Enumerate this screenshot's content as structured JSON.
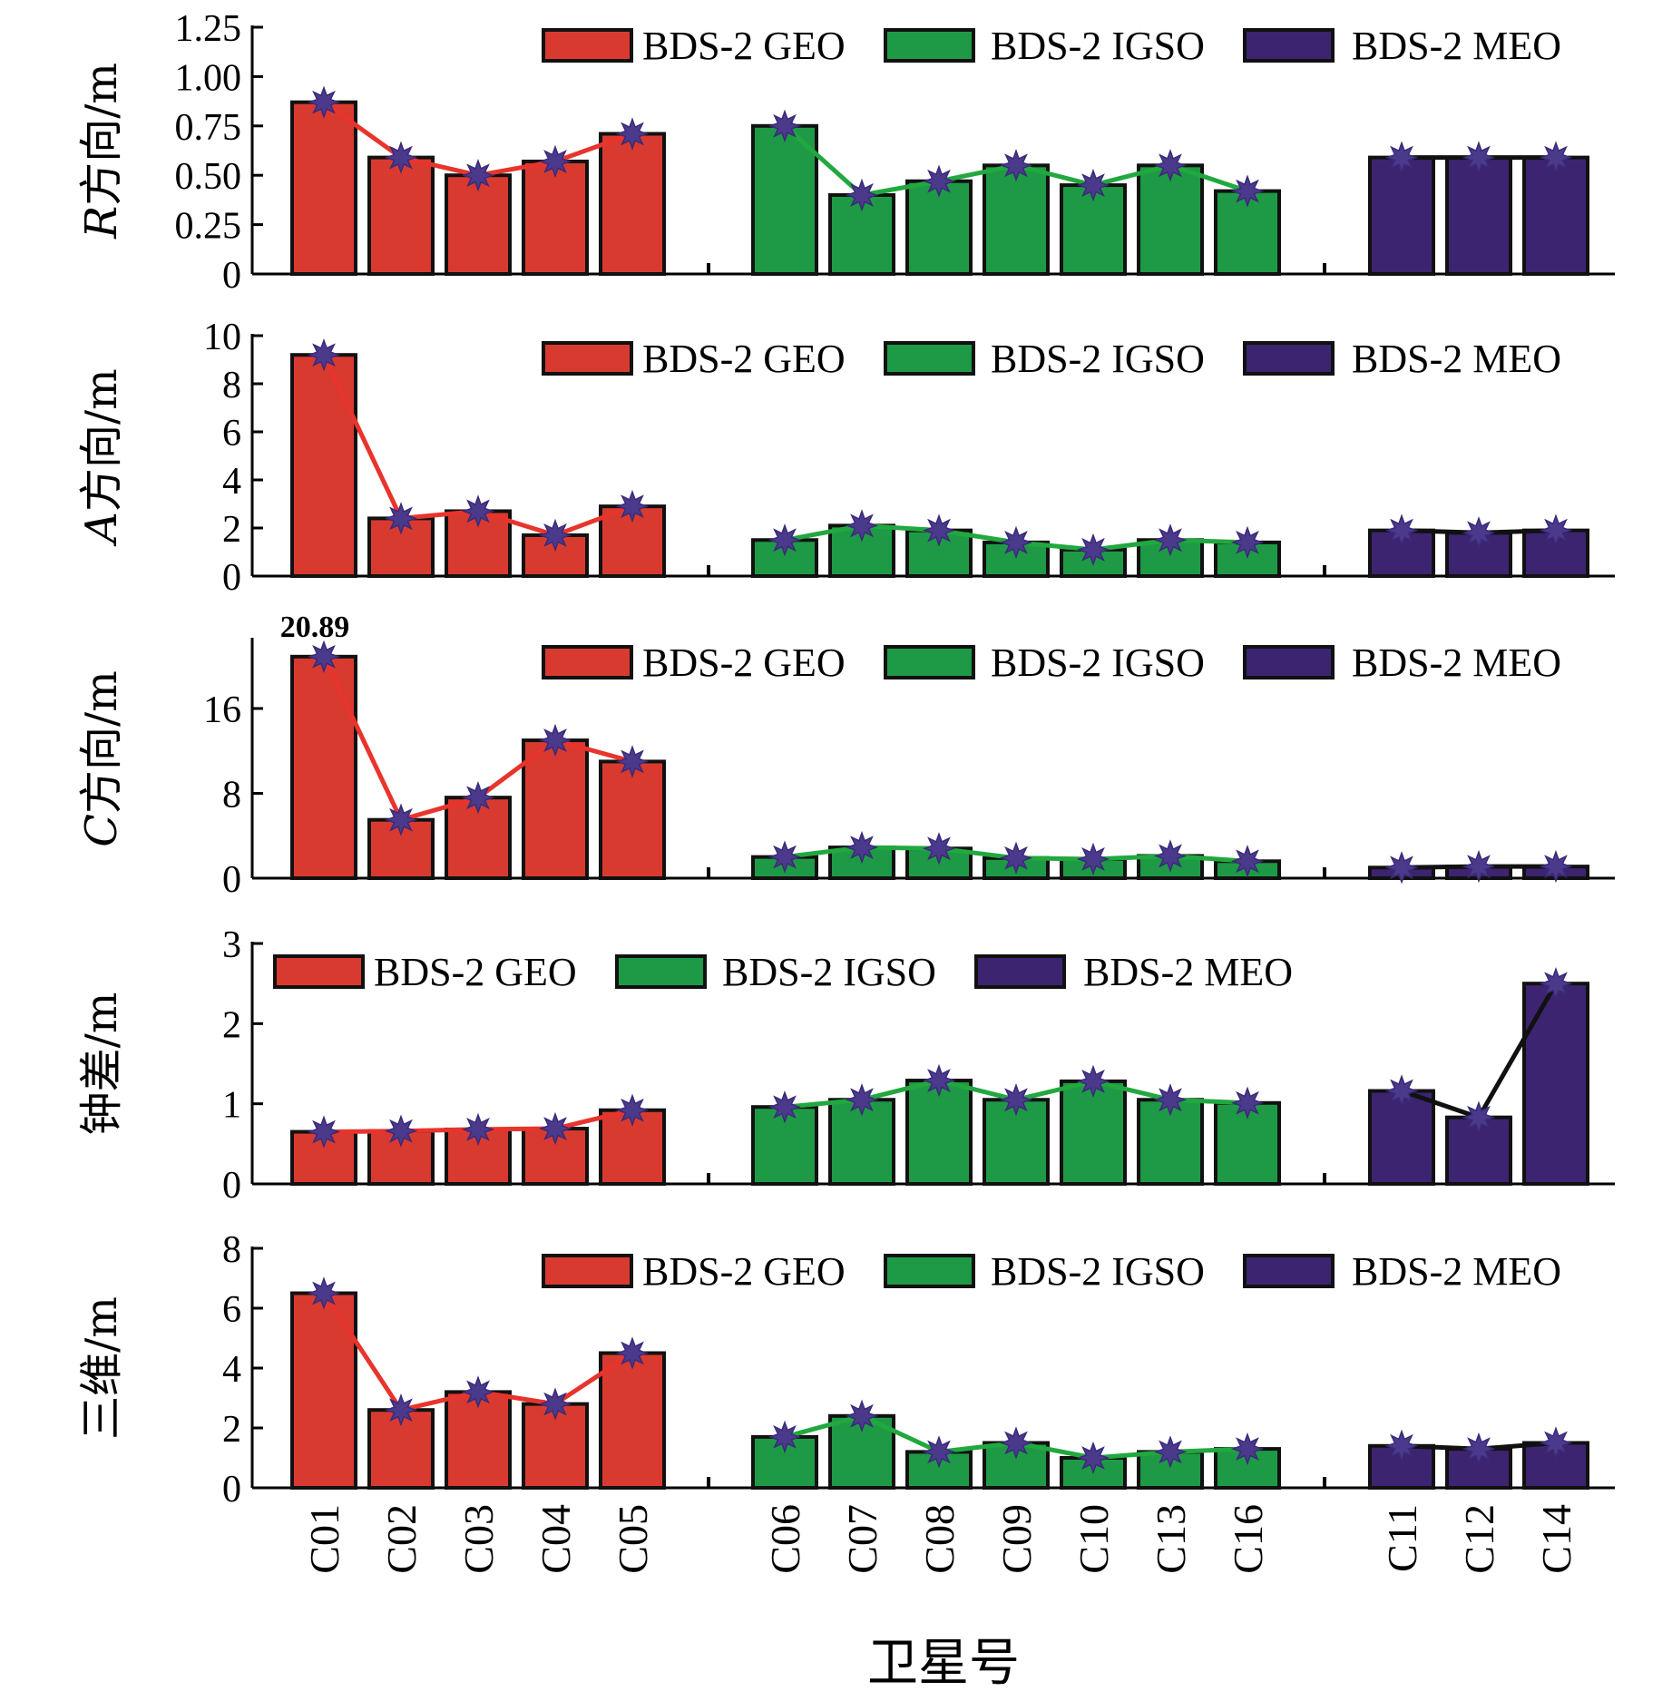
{
  "chart_data": {
    "type": "bar",
    "xlabel": "卫星号",
    "categories": [
      "C01",
      "C02",
      "C03",
      "C04",
      "C05",
      "C06",
      "C07",
      "C08",
      "C09",
      "C10",
      "C13",
      "C16",
      "C11",
      "C12",
      "C14"
    ],
    "groups": [
      {
        "name": "BDS-2 GEO",
        "color": "#d93a30",
        "line_color": "#e8342c",
        "categories": [
          "C01",
          "C02",
          "C03",
          "C04",
          "C05"
        ]
      },
      {
        "name": "BDS-2 IGSO",
        "color": "#1e9a46",
        "line_color": "#21a83f",
        "categories": [
          "C06",
          "C07",
          "C08",
          "C09",
          "C10",
          "C13",
          "C16"
        ]
      },
      {
        "name": "BDS-2 MEO",
        "color": "#3d2470",
        "line_color": "#111111",
        "categories": [
          "C11",
          "C12",
          "C14"
        ]
      }
    ],
    "marker_color": "#4b3a8c",
    "panels": [
      {
        "id": "r",
        "ylabel_italic": "R",
        "ylabel_rest": "方向/m",
        "ylim": [
          0,
          1.25
        ],
        "yticks": [
          0,
          0.25,
          0.5,
          0.75,
          1.0,
          1.25
        ],
        "ytick_labels": [
          "0",
          "0.25",
          "0.50",
          "0.75",
          "1.00",
          "1.25"
        ],
        "legend_position": "top-right",
        "values": [
          0.87,
          0.59,
          0.5,
          0.57,
          0.71,
          0.75,
          0.4,
          0.47,
          0.55,
          0.45,
          0.55,
          0.42,
          0.59,
          0.59,
          0.59
        ]
      },
      {
        "id": "a",
        "ylabel_italic": "A",
        "ylabel_rest": "方向/m",
        "ylim": [
          0,
          10
        ],
        "yticks": [
          0,
          2,
          4,
          6,
          8,
          10
        ],
        "ytick_labels": [
          "0",
          "2",
          "4",
          "6",
          "8",
          "10"
        ],
        "legend_position": "top-right",
        "values": [
          9.2,
          2.4,
          2.7,
          1.7,
          2.9,
          1.5,
          2.1,
          1.9,
          1.4,
          1.1,
          1.5,
          1.4,
          1.9,
          1.8,
          1.9
        ]
      },
      {
        "id": "c",
        "ylabel_italic": "C",
        "ylabel_rest": "方向/m",
        "ylim": [
          0,
          22.5
        ],
        "yticks": [
          0,
          8,
          16
        ],
        "ytick_labels": [
          "0",
          "8",
          "16"
        ],
        "legend_position": "top-right",
        "annotation": {
          "text": "20.89",
          "category": "C01"
        },
        "values": [
          20.89,
          5.5,
          7.6,
          13.0,
          11.0,
          2.0,
          2.9,
          2.8,
          1.9,
          1.8,
          2.1,
          1.6,
          1.0,
          1.1,
          1.1
        ]
      },
      {
        "id": "clock",
        "ylabel_italic": "",
        "ylabel_rest": "钟差/m",
        "ylim": [
          0,
          3
        ],
        "yticks": [
          0,
          1,
          2,
          3
        ],
        "ytick_labels": [
          "0",
          "1",
          "2",
          "3"
        ],
        "legend_position": "top-left",
        "values": [
          0.65,
          0.66,
          0.68,
          0.69,
          0.92,
          0.96,
          1.05,
          1.29,
          1.05,
          1.28,
          1.05,
          1.01,
          1.16,
          0.83,
          2.5
        ]
      },
      {
        "id": "3d",
        "ylabel_italic": "",
        "ylabel_rest": "三维/m",
        "ylim": [
          0,
          8
        ],
        "yticks": [
          0,
          2,
          4,
          6,
          8
        ],
        "ytick_labels": [
          "0",
          "2",
          "4",
          "6",
          "8"
        ],
        "legend_position": "top-right",
        "values": [
          6.5,
          2.6,
          3.2,
          2.8,
          4.5,
          1.7,
          2.4,
          1.2,
          1.5,
          1.0,
          1.2,
          1.3,
          1.4,
          1.3,
          1.5
        ]
      }
    ]
  }
}
